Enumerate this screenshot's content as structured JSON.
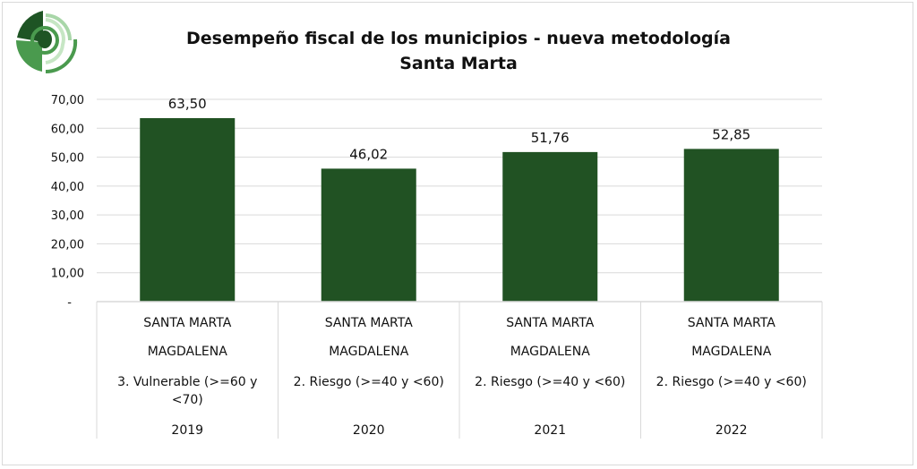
{
  "chart_data": {
    "type": "bar",
    "title": "Desempeño fiscal de los municipios - nueva metodología",
    "subtitle": "Santa Marta",
    "categories": [
      {
        "municipio": "SANTA MARTA",
        "departamento": "MAGDALENA",
        "rango": [
          "3. Vulnerable (>=60 y",
          "<70)"
        ],
        "year": "2019"
      },
      {
        "municipio": "SANTA MARTA",
        "departamento": "MAGDALENA",
        "rango": [
          "2. Riesgo (>=40 y <60)"
        ],
        "year": "2020"
      },
      {
        "municipio": "SANTA MARTA",
        "departamento": "MAGDALENA",
        "rango": [
          "2. Riesgo (>=40 y <60)"
        ],
        "year": "2021"
      },
      {
        "municipio": "SANTA MARTA",
        "departamento": "MAGDALENA",
        "rango": [
          "2. Riesgo (>=40 y <60)"
        ],
        "year": "2022"
      }
    ],
    "values": [
      63.5,
      46.02,
      51.76,
      52.85
    ],
    "data_labels": [
      "63,50",
      "46,02",
      "51,76",
      "52,85"
    ],
    "yticks": [
      0,
      10,
      20,
      30,
      40,
      50,
      60,
      70
    ],
    "ytick_labels": [
      "-",
      "10,00",
      "20,00",
      "30,00",
      "40,00",
      "50,00",
      "60,00",
      "70,00"
    ],
    "ylim": [
      0,
      70
    ],
    "grid": true,
    "xlabel": "",
    "ylabel": "",
    "bar_color": "#215223"
  }
}
